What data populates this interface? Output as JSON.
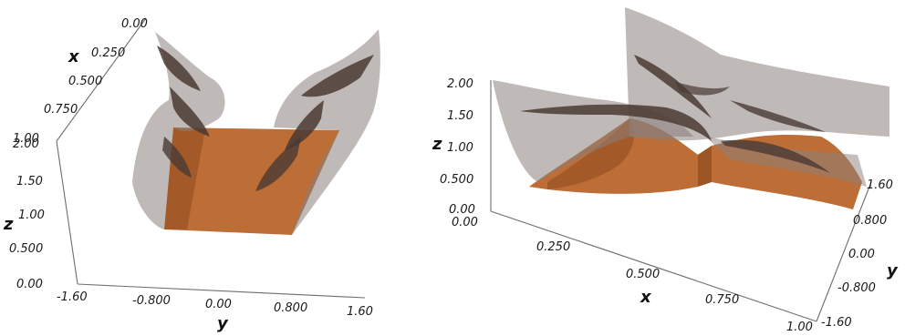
{
  "colors": {
    "surface_grey": "#8a7f7c",
    "fold_dark": "#4a3a33",
    "slab_orange": "#b9662c",
    "slab_orange_dark": "#8f4a1e",
    "axis_grey": "#6e6e6e"
  },
  "left_plot": {
    "x_axis": {
      "label": "x",
      "ticks": [
        "0.00",
        "0.250",
        "0.500",
        "0.750",
        "1.00"
      ]
    },
    "z_axis": {
      "label": "z",
      "ticks": [
        "2.00",
        "1.50",
        "1.00",
        "0.500",
        "0.00"
      ]
    },
    "y_axis": {
      "label": "y",
      "ticks": [
        "-1.60",
        "-0.800",
        "0.00",
        "0.800",
        "1.60"
      ]
    }
  },
  "right_plot": {
    "z_axis": {
      "label": "z",
      "ticks": [
        "2.00",
        "1.50",
        "1.00",
        "0.500",
        "0.00"
      ]
    },
    "x_axis": {
      "label": "x",
      "ticks": [
        "0.00",
        "0.250",
        "0.500",
        "0.750",
        "1.00"
      ]
    },
    "y_axis": {
      "label": "y",
      "ticks": [
        "1.60",
        "0.800",
        "0.00",
        "-0.800",
        "-1.60"
      ]
    }
  }
}
